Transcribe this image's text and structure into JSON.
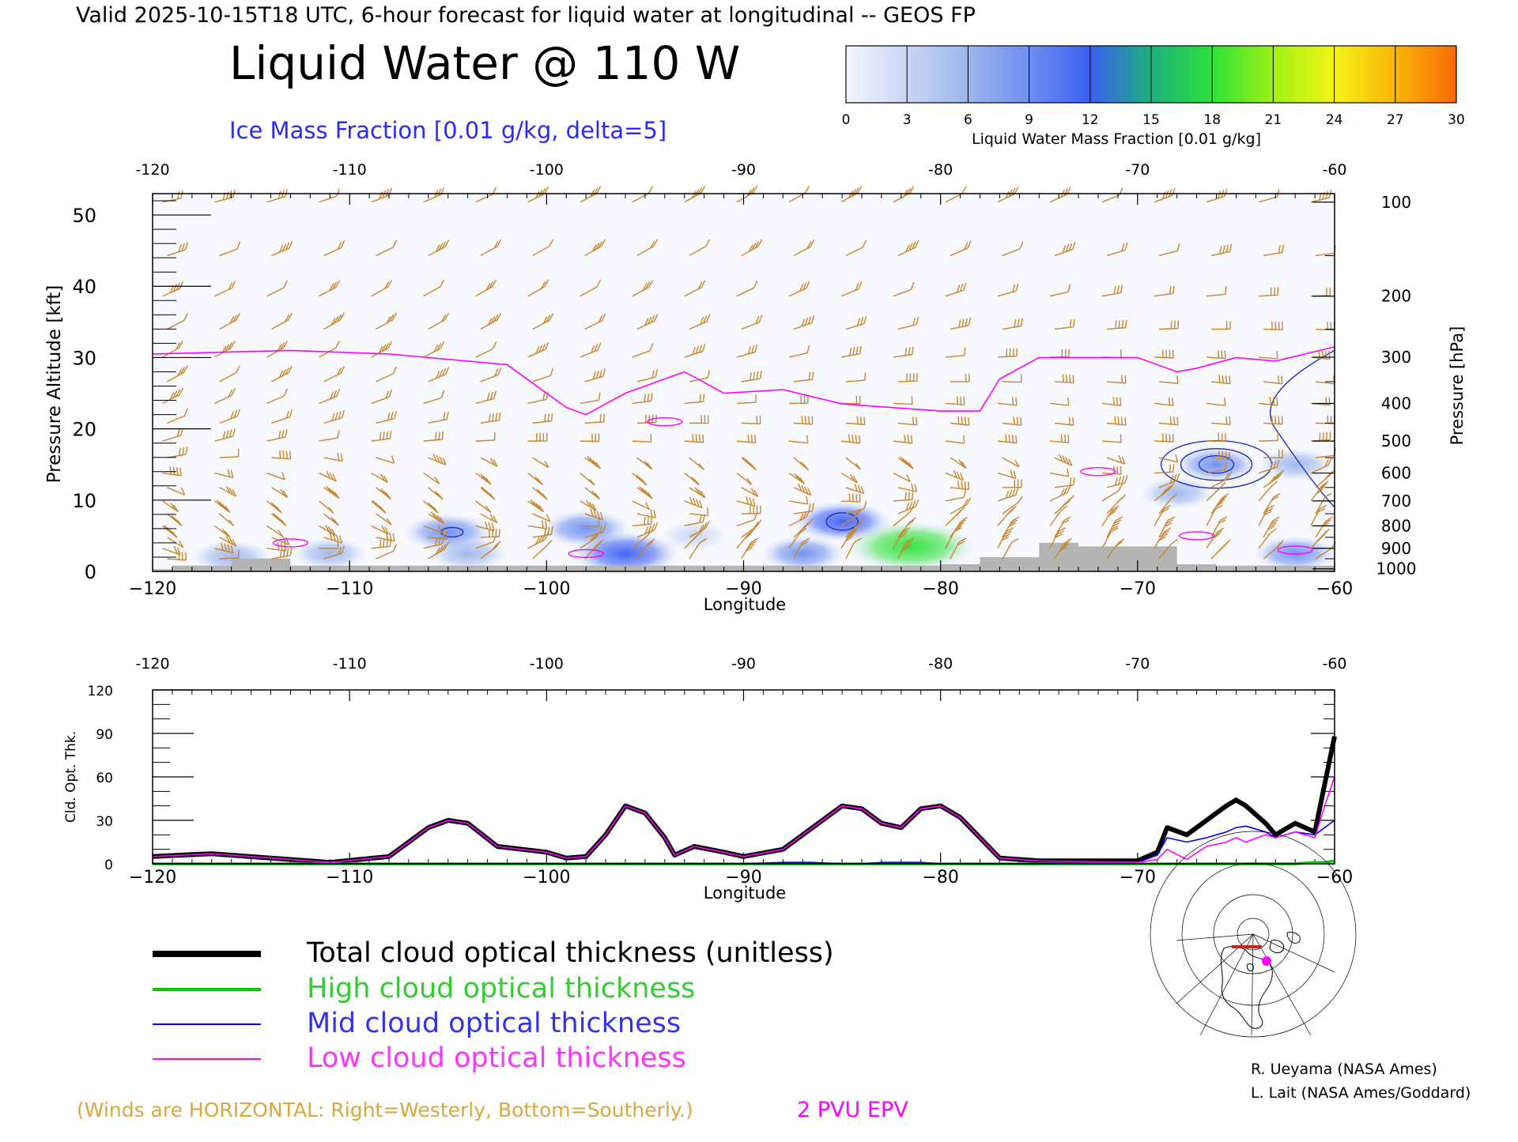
{
  "header": {
    "valid_line": "Valid 2025-10-15T18 UTC, 6-hour forecast for liquid water at longitudinal -- GEOS FP",
    "title": "Liquid Water @ 110 W",
    "subtitle": "Ice Mass Fraction [0.01 g/kg, delta=5]"
  },
  "colorbar": {
    "ticks": [
      "0",
      "3",
      "6",
      "9",
      "12",
      "15",
      "18",
      "21",
      "24",
      "27",
      "30"
    ],
    "colors": [
      "#f4f6fc",
      "#c8d6f4",
      "#9db6ee",
      "#6e8ff0",
      "#3c5ff2",
      "#1db07e",
      "#2ee03a",
      "#9ef015",
      "#f4f418",
      "#f8b408",
      "#f86a08"
    ],
    "label": "Liquid Water Mass Fraction [0.01 g/kg]"
  },
  "colors": {
    "wind": "#c8862a",
    "epv": "#ff00ff",
    "ice_contour": "#2030c8",
    "terrain": "#b4b4b4",
    "total": "#000000",
    "high": "#00cc00",
    "mid": "#0000ff",
    "low": "#ff00ff"
  },
  "upper_panel": {
    "xlabel": "Longitude",
    "ylabel_left": "Pressure Altitude [kft]",
    "ylabel_right": "Pressure [hPa]",
    "top_ticks": [
      "-120",
      "-110",
      "-100",
      "-90",
      "-80",
      "-70",
      "-60"
    ],
    "bottom_ticks": [
      "−120",
      "−110",
      "−100",
      "−90",
      "−80",
      "−70",
      "−60"
    ],
    "alt_ticks": [
      "50",
      "40",
      "30",
      "20",
      "10",
      "0"
    ],
    "pressure_ticks": [
      "100",
      "200",
      "300",
      "400",
      "500",
      "600",
      "700",
      "800",
      "900",
      "1000"
    ]
  },
  "lower_panel": {
    "xlabel": "Longitude",
    "ylabel": "Cld. Opt. Thk.",
    "top_ticks": [
      "-120",
      "-110",
      "-100",
      "-90",
      "-80",
      "-70",
      "-60"
    ],
    "bottom_ticks": [
      "−120",
      "−110",
      "−100",
      "−90",
      "−80",
      "−70",
      "−60"
    ],
    "y_ticks": [
      "120",
      "90",
      "60",
      "30",
      "0"
    ]
  },
  "legend": {
    "total": "Total cloud optical thickness (unitless)",
    "high": "High cloud optical thickness",
    "mid": "Mid cloud optical thickness",
    "low": "Low cloud optical thickness"
  },
  "footer": {
    "winds_note": "(Winds are HORIZONTAL: Right=Westerly, Bottom=Southerly.)",
    "epv_label": "2 PVU EPV",
    "credit1": "R. Ueyama (NASA Ames)",
    "credit2": "L. Lait (NASA Ames/Goddard)"
  },
  "chart_data": [
    {
      "type": "heatmap",
      "x_unit": "longitude",
      "y_unit": "kft",
      "xlim": [
        -120,
        -60
      ],
      "ylim": [
        0,
        53
      ],
      "pressure_levels_hPa": [
        100,
        200,
        300,
        400,
        500,
        600,
        700,
        800,
        900,
        1000
      ],
      "liquid_water_blobs": [
        {
          "lon": -116,
          "alt": 2.0,
          "value": 7
        },
        {
          "lon": -111,
          "alt": 2.5,
          "value": 6
        },
        {
          "lon": -105,
          "alt": 5.5,
          "value": 9
        },
        {
          "lon": -104,
          "alt": 2.5,
          "value": 7
        },
        {
          "lon": -98,
          "alt": 6.0,
          "value": 9
        },
        {
          "lon": -96,
          "alt": 2.5,
          "value": 13
        },
        {
          "lon": -92.5,
          "alt": 5.0,
          "value": 4
        },
        {
          "lon": -87,
          "alt": 2.5,
          "value": 8
        },
        {
          "lon": -85,
          "alt": 7.0,
          "value": 11
        },
        {
          "lon": -81.5,
          "alt": 3.5,
          "value": 17
        },
        {
          "lon": -66,
          "alt": 15.0,
          "value": 8
        },
        {
          "lon": -68,
          "alt": 11.0,
          "value": 6
        },
        {
          "lon": -62,
          "alt": 15.0,
          "value": 6
        },
        {
          "lon": -62,
          "alt": 2.5,
          "value": 8
        }
      ],
      "epv_2pvu_line": {
        "lon": [
          -120,
          -113,
          -108,
          -102,
          -99,
          -98,
          -96,
          -93,
          -91,
          -88,
          -85,
          -80,
          -78,
          -77,
          -75,
          -72,
          -70,
          -68,
          -67,
          -65,
          -63,
          -60
        ],
        "alt": [
          30.5,
          31,
          30.5,
          29,
          23,
          22,
          25,
          28,
          25,
          25.5,
          23.5,
          22.5,
          22.5,
          27,
          30,
          30,
          30,
          28,
          28.5,
          30,
          29.5,
          31.5
        ]
      },
      "terrain_kft": {
        "lon": [
          -120,
          -119,
          -116,
          -113,
          -110,
          -100,
          -90,
          -80,
          -78,
          -76,
          -75,
          -73,
          -70,
          -68,
          -66,
          -64,
          -60
        ],
        "alt": [
          0.3,
          0.8,
          1.8,
          0.8,
          0.8,
          0.8,
          0.8,
          1.0,
          2.0,
          2.0,
          4.0,
          3.5,
          3.5,
          1.0,
          0.8,
          0.8,
          0.8
        ]
      },
      "wind_barbs": "columns every ~2.5 deg longitude at levels 1000-100 hPa"
    },
    {
      "type": "line",
      "x_unit": "longitude",
      "xlim": [
        -120,
        -60
      ],
      "ylim": [
        0,
        120
      ],
      "x": [
        -120,
        -117,
        -114,
        -111,
        -109.5,
        -108,
        -106,
        -105,
        -104,
        -102.5,
        -100,
        -99,
        -98,
        -97,
        -96,
        -95,
        -94,
        -93.5,
        -92.5,
        -91,
        -90,
        -88,
        -86.5,
        -85,
        -84,
        -83,
        -82,
        -81,
        -80,
        -79,
        -78,
        -77,
        -75,
        -70,
        -69,
        -68.5,
        -67.5,
        -66.5,
        -65.5,
        -65,
        -64.5,
        -63.5,
        -63,
        -62,
        -61,
        -60.5,
        -60
      ],
      "series": [
        {
          "name": "Total cloud optical thickness (unitless)",
          "values": [
            5,
            7,
            4,
            1,
            3,
            5,
            25,
            30,
            28,
            12,
            8,
            4,
            5,
            20,
            40,
            35,
            18,
            6,
            12,
            8,
            5,
            10,
            25,
            40,
            38,
            28,
            25,
            38,
            40,
            32,
            18,
            4,
            2,
            2,
            8,
            25,
            20,
            30,
            40,
            44,
            40,
            28,
            20,
            28,
            22,
            55,
            88
          ]
        },
        {
          "name": "High cloud optical thickness",
          "values": [
            0,
            0,
            0,
            0,
            0,
            0,
            0,
            0,
            0,
            0,
            0,
            0,
            0,
            0,
            0,
            0,
            0,
            0,
            0,
            0,
            0,
            0,
            0,
            0,
            0,
            0,
            0,
            0,
            0,
            0,
            0,
            0,
            0,
            0,
            0,
            0,
            0,
            0,
            0,
            0,
            0,
            0,
            0,
            0,
            1,
            1,
            2
          ]
        },
        {
          "name": "Mid cloud optical thickness",
          "values": [
            0,
            0,
            0,
            0,
            0,
            0,
            0,
            0,
            0,
            0,
            0,
            0,
            0,
            0,
            0,
            0,
            0,
            0,
            0,
            0,
            0,
            1,
            1,
            0,
            0,
            1,
            1,
            1,
            0,
            0,
            0,
            0,
            0,
            1,
            6,
            18,
            15,
            18,
            22,
            25,
            26,
            22,
            18,
            22,
            20,
            25,
            30
          ]
        },
        {
          "name": "Low cloud optical thickness",
          "values": [
            5,
            7,
            4,
            1,
            3,
            5,
            25,
            30,
            28,
            12,
            8,
            4,
            5,
            20,
            40,
            35,
            18,
            6,
            12,
            8,
            5,
            10,
            25,
            40,
            38,
            28,
            25,
            38,
            40,
            32,
            18,
            4,
            2,
            1,
            3,
            10,
            3,
            12,
            15,
            18,
            15,
            20,
            18,
            22,
            18,
            40,
            60
          ]
        }
      ]
    }
  ]
}
